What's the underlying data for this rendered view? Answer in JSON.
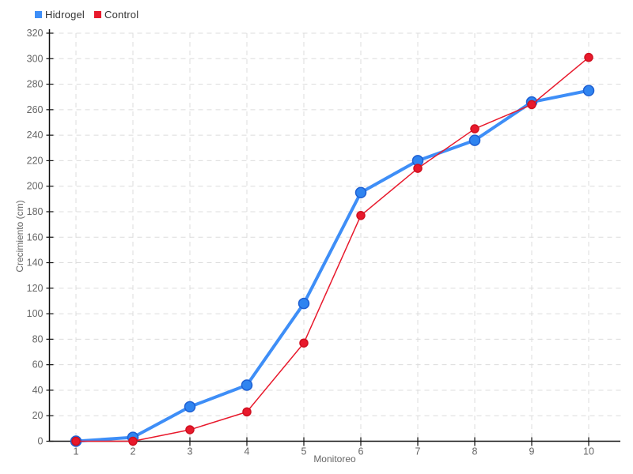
{
  "chart_data": {
    "type": "line",
    "title": "",
    "xlabel": "Monitoreo",
    "ylabel": "Crecimiento (cm)",
    "x": [
      1,
      2,
      3,
      4,
      5,
      6,
      7,
      8,
      9,
      10
    ],
    "series": [
      {
        "name": "Hidrogel",
        "color": "#3e8ef7",
        "marker_fill": "#2f84f0",
        "marker_stroke": "#1e5fd2",
        "line_width": 4,
        "marker_radius": 6.5,
        "values": [
          0,
          3,
          27,
          44,
          108,
          195,
          220,
          236,
          266,
          275
        ]
      },
      {
        "name": "Control",
        "color": "#e8192c",
        "marker_fill": "#e8192c",
        "marker_stroke": "#d0101f",
        "line_width": 1.5,
        "marker_radius": 5,
        "values": [
          0,
          0,
          9,
          23,
          77,
          177,
          214,
          245,
          264,
          301
        ]
      }
    ],
    "xlim": [
      1,
      10
    ],
    "ylim": [
      0,
      320
    ],
    "ytick_step": 20,
    "xticks": [
      "1",
      "2",
      "3",
      "4",
      "5",
      "6",
      "7",
      "8",
      "9",
      "10"
    ],
    "yticks": [
      "0",
      "20",
      "40",
      "60",
      "80",
      "100",
      "120",
      "140",
      "160",
      "180",
      "200",
      "220",
      "240",
      "260",
      "280",
      "300",
      "320"
    ],
    "grid": true,
    "legend_position": "top-left",
    "colors": {
      "background": "#ffffff",
      "axis": "#111111",
      "grid": "#dcdcdc",
      "tick_label": "#666666",
      "axis_title": "#666666",
      "legend_text": "#333333"
    }
  }
}
